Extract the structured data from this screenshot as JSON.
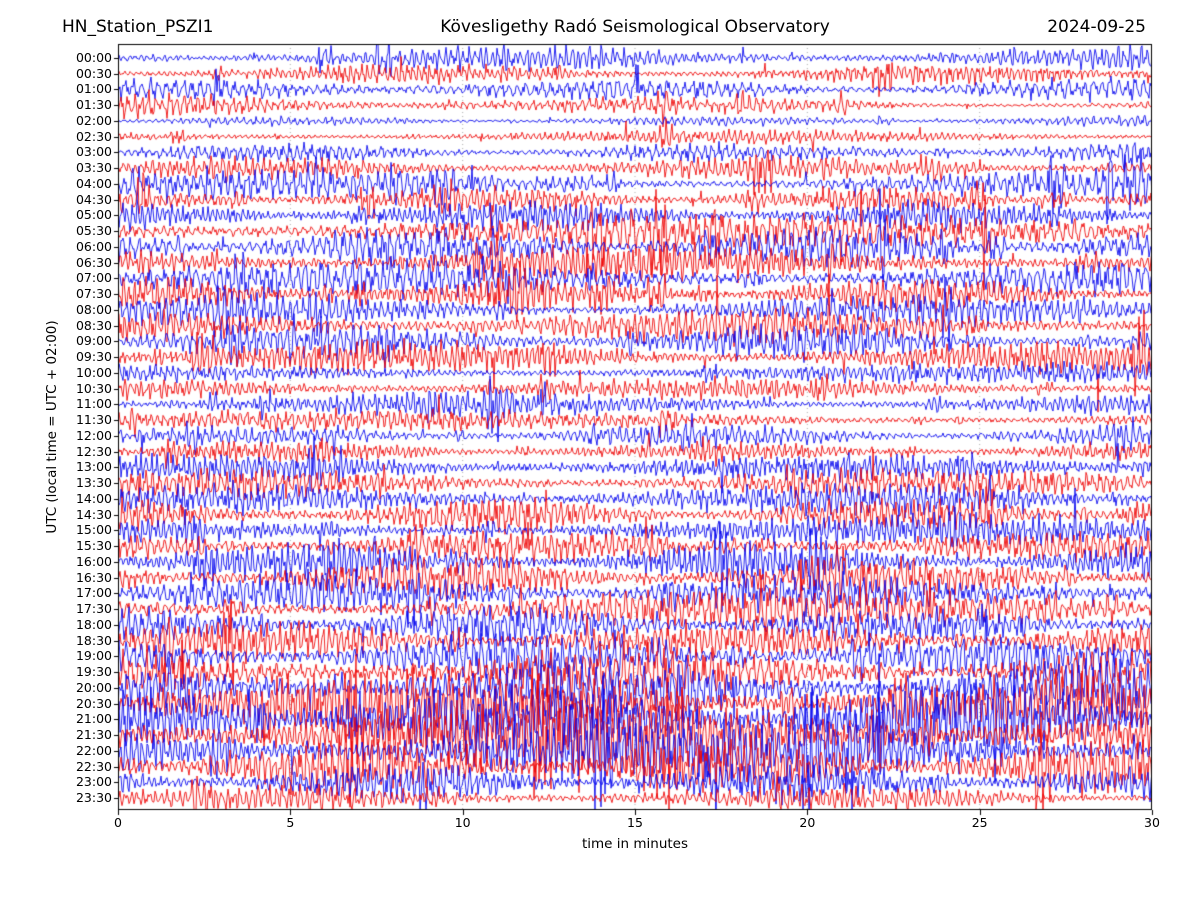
{
  "header": {
    "station": "HN_Station_PSZI1",
    "observatory": "Kövesligethy Radó Seismological Observatory",
    "date": "2024-09-25"
  },
  "axes": {
    "x_label": "time in minutes",
    "y_label": "UTC (local time = UTC + 02:00)",
    "x_ticks": [
      0,
      5,
      10,
      15,
      20,
      25,
      30
    ],
    "x_range": [
      0,
      30
    ]
  },
  "chart_data": {
    "type": "line",
    "subtype": "helicorder-dayplot",
    "title": "HN_Station_PSZI1 | Kövesligethy Radó Seismological Observatory | 2024-09-25",
    "xlabel": "time in minutes",
    "ylabel": "UTC (local time = UTC + 02:00)",
    "x_range_minutes": [
      0,
      30
    ],
    "minutes_per_row": 30,
    "row_count": 48,
    "grid": {
      "vertical_dotted_minutes": [
        5,
        10,
        15,
        20,
        25
      ]
    },
    "colors": {
      "blue": "#0000EE",
      "red": "#EE0000"
    },
    "amplitude_units": "relative to row spacing; estimated envelope per 5-minute window",
    "rows": [
      {
        "utc": "00:00",
        "color": "blue",
        "envelope": [
          0.55,
          0.5,
          0.6,
          0.5,
          0.55,
          0.6
        ]
      },
      {
        "utc": "00:30",
        "color": "red",
        "envelope": [
          0.5,
          0.45,
          0.5,
          0.4,
          0.45,
          0.5
        ]
      },
      {
        "utc": "01:00",
        "color": "blue",
        "envelope": [
          0.5,
          0.75,
          0.5,
          0.55,
          0.5,
          0.55
        ]
      },
      {
        "utc": "01:30",
        "color": "red",
        "envelope": [
          0.65,
          0.6,
          0.5,
          0.35,
          0.3,
          0.3
        ]
      },
      {
        "utc": "02:00",
        "color": "blue",
        "envelope": [
          0.2,
          0.22,
          0.25,
          0.22,
          0.28,
          0.25
        ]
      },
      {
        "utc": "02:30",
        "color": "red",
        "envelope": [
          0.3,
          0.33,
          0.3,
          0.35,
          0.3,
          0.33
        ]
      },
      {
        "utc": "03:00",
        "color": "blue",
        "envelope": [
          0.4,
          0.45,
          0.42,
          0.45,
          0.5,
          0.45
        ]
      },
      {
        "utc": "03:30",
        "color": "red",
        "envelope": [
          0.5,
          0.55,
          0.5,
          0.55,
          0.6,
          0.55
        ]
      },
      {
        "utc": "04:00",
        "color": "blue",
        "envelope": [
          0.6,
          0.65,
          0.6,
          0.55,
          0.6,
          0.65
        ]
      },
      {
        "utc": "04:30",
        "color": "red",
        "envelope": [
          0.6,
          0.62,
          0.65,
          0.6,
          0.58,
          0.62
        ]
      },
      {
        "utc": "05:00",
        "color": "blue",
        "envelope": [
          0.7,
          0.75,
          0.7,
          0.72,
          0.68,
          0.72
        ]
      },
      {
        "utc": "05:30",
        "color": "red",
        "envelope": [
          0.9,
          0.95,
          0.9,
          0.85,
          0.9,
          0.95
        ]
      },
      {
        "utc": "06:00",
        "color": "blue",
        "envelope": [
          0.95,
          1.0,
          0.95,
          0.9,
          0.95,
          0.9
        ]
      },
      {
        "utc": "06:30",
        "color": "red",
        "envelope": [
          0.9,
          0.85,
          0.9,
          0.85,
          0.8,
          0.85
        ]
      },
      {
        "utc": "07:00",
        "color": "blue",
        "envelope": [
          0.85,
          0.9,
          0.85,
          0.8,
          0.85,
          0.8
        ]
      },
      {
        "utc": "07:30",
        "color": "red",
        "envelope": [
          0.8,
          0.85,
          0.8,
          0.75,
          0.8,
          0.75
        ]
      },
      {
        "utc": "08:00",
        "color": "blue",
        "envelope": [
          0.7,
          0.75,
          0.7,
          0.65,
          0.7,
          0.75
        ]
      },
      {
        "utc": "08:30",
        "color": "red",
        "envelope": [
          0.8,
          0.85,
          0.9,
          0.8,
          0.75,
          0.8
        ]
      },
      {
        "utc": "09:00",
        "color": "blue",
        "envelope": [
          0.8,
          0.75,
          0.85,
          0.9,
          0.8,
          0.75
        ]
      },
      {
        "utc": "09:30",
        "color": "red",
        "envelope": [
          0.85,
          0.8,
          0.75,
          0.8,
          0.75,
          0.8
        ]
      },
      {
        "utc": "10:00",
        "color": "blue",
        "envelope": [
          0.5,
          0.55,
          0.5,
          0.55,
          0.5,
          0.45
        ]
      },
      {
        "utc": "10:30",
        "color": "red",
        "envelope": [
          0.55,
          0.6,
          0.55,
          0.5,
          0.55,
          0.6
        ]
      },
      {
        "utc": "11:00",
        "color": "blue",
        "envelope": [
          0.5,
          0.55,
          0.6,
          0.55,
          0.5,
          0.55
        ]
      },
      {
        "utc": "11:30",
        "color": "red",
        "envelope": [
          0.45,
          0.5,
          0.45,
          0.5,
          0.45,
          0.5
        ]
      },
      {
        "utc": "12:00",
        "color": "blue",
        "envelope": [
          0.5,
          0.45,
          0.5,
          0.55,
          0.5,
          0.45
        ]
      },
      {
        "utc": "12:30",
        "color": "red",
        "envelope": [
          0.45,
          0.5,
          0.45,
          0.4,
          0.45,
          0.5
        ]
      },
      {
        "utc": "13:00",
        "color": "blue",
        "envelope": [
          0.6,
          0.65,
          0.7,
          0.65,
          0.6,
          0.65
        ]
      },
      {
        "utc": "13:30",
        "color": "red",
        "envelope": [
          0.65,
          0.7,
          0.65,
          0.7,
          0.75,
          0.7
        ]
      },
      {
        "utc": "14:00",
        "color": "blue",
        "envelope": [
          0.75,
          0.7,
          0.75,
          0.8,
          0.75,
          0.7
        ]
      },
      {
        "utc": "14:30",
        "color": "red",
        "envelope": [
          0.8,
          0.75,
          0.8,
          0.75,
          0.8,
          0.85
        ]
      },
      {
        "utc": "15:00",
        "color": "blue",
        "envelope": [
          0.7,
          0.75,
          0.7,
          0.65,
          0.7,
          0.75
        ]
      },
      {
        "utc": "15:30",
        "color": "red",
        "envelope": [
          0.75,
          0.8,
          0.75,
          0.8,
          0.75,
          0.7
        ]
      },
      {
        "utc": "16:00",
        "color": "blue",
        "envelope": [
          0.85,
          0.9,
          0.85,
          0.9,
          0.95,
          0.9
        ]
      },
      {
        "utc": "16:30",
        "color": "red",
        "envelope": [
          0.95,
          0.9,
          0.95,
          1.0,
          0.95,
          0.9
        ]
      },
      {
        "utc": "17:00",
        "color": "blue",
        "envelope": [
          0.95,
          1.0,
          0.95,
          0.9,
          0.95,
          1.0
        ]
      },
      {
        "utc": "17:30",
        "color": "red",
        "envelope": [
          0.9,
          0.85,
          0.9,
          0.95,
          0.9,
          0.85
        ]
      },
      {
        "utc": "18:00",
        "color": "blue",
        "envelope": [
          0.85,
          0.9,
          0.95,
          0.9,
          0.85,
          0.9
        ]
      },
      {
        "utc": "18:30",
        "color": "red",
        "envelope": [
          0.9,
          0.95,
          0.9,
          0.85,
          0.9,
          0.95
        ]
      },
      {
        "utc": "19:00",
        "color": "blue",
        "envelope": [
          0.95,
          1.0,
          1.05,
          1.0,
          0.95,
          1.0
        ]
      },
      {
        "utc": "19:30",
        "color": "red",
        "envelope": [
          1.1,
          1.2,
          1.15,
          1.2,
          1.1,
          1.05
        ]
      },
      {
        "utc": "20:00",
        "color": "blue",
        "envelope": [
          1.2,
          1.3,
          1.25,
          1.2,
          1.3,
          1.25
        ]
      },
      {
        "utc": "20:30",
        "color": "red",
        "envelope": [
          1.4,
          1.6,
          1.5,
          1.55,
          1.45,
          1.4
        ]
      },
      {
        "utc": "21:00",
        "color": "blue",
        "envelope": [
          1.6,
          1.8,
          1.7,
          1.75,
          1.65,
          1.6
        ]
      },
      {
        "utc": "21:30",
        "color": "red",
        "envelope": [
          1.7,
          1.75,
          1.8,
          1.7,
          1.65,
          1.7
        ]
      },
      {
        "utc": "22:00",
        "color": "blue",
        "envelope": [
          1.5,
          1.55,
          1.5,
          1.45,
          1.5,
          1.4
        ]
      },
      {
        "utc": "22:30",
        "color": "red",
        "envelope": [
          1.3,
          1.25,
          1.3,
          1.2,
          1.25,
          1.2
        ]
      },
      {
        "utc": "23:00",
        "color": "blue",
        "envelope": [
          0.9,
          0.95,
          0.9,
          0.85,
          0.9,
          0.85
        ]
      },
      {
        "utc": "23:30",
        "color": "red",
        "envelope": [
          0.6,
          0.65,
          0.6,
          0.55,
          0.6,
          0.55
        ]
      }
    ]
  }
}
